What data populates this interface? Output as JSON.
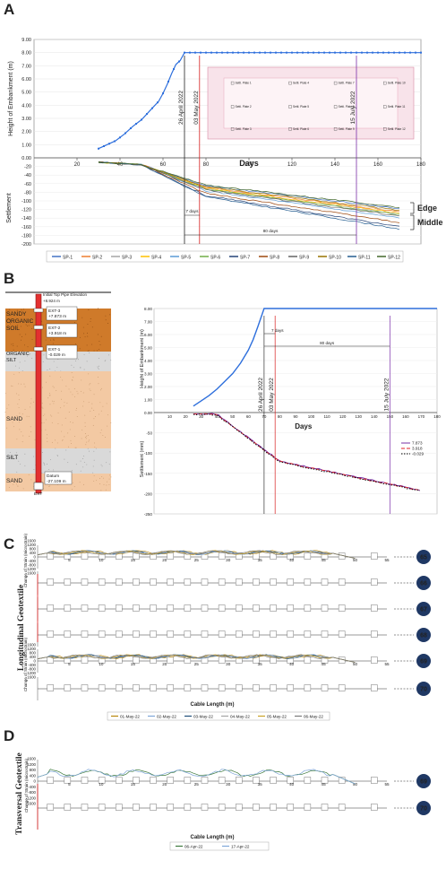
{
  "panels": {
    "A": {
      "letter": "A"
    },
    "B": {
      "letter": "B"
    },
    "C": {
      "letter": "C"
    },
    "D": {
      "letter": "D"
    }
  },
  "chart_data": [
    {
      "id": "A",
      "type": "line",
      "xlabel": "Days",
      "ylabel_top": "Height of Embankment (m)",
      "ylabel_bottom": "Settlement",
      "xlim": [
        0,
        180
      ],
      "ylim_top": [
        0,
        9
      ],
      "ylim_bottom": [
        -200,
        0
      ],
      "x_ticks": [
        "20",
        "40",
        "60",
        "80",
        "100",
        "120",
        "140",
        "160",
        "180"
      ],
      "y_ticks_top": [
        "0.00",
        "1.00",
        "2.00",
        "3.00",
        "4.00",
        "5.00",
        "6.00",
        "7.00",
        "8.00",
        "9.00"
      ],
      "y_ticks_bottom": [
        "-20",
        "-40",
        "-60",
        "-80",
        "-100",
        "-120",
        "-140",
        "-160",
        "-180",
        "-200"
      ],
      "embankment": {
        "x": [
          30,
          34,
          38,
          42,
          46,
          50,
          54,
          58,
          60,
          62,
          64,
          66,
          68,
          70,
          180
        ],
        "y": [
          0.7,
          1.0,
          1.3,
          1.8,
          2.4,
          2.9,
          3.6,
          4.3,
          4.9,
          5.6,
          6.4,
          7.1,
          7.4,
          8.0,
          8.0
        ]
      },
      "vlines": [
        {
          "x": 70,
          "label": "26 April 2022",
          "color": "#222222"
        },
        {
          "x": 77,
          "label": "03 May 2022",
          "color": "#d62020"
        },
        {
          "x": 150,
          "label": "15 July 2022",
          "color": "#7b2fa8"
        }
      ],
      "spans": [
        {
          "x0": 70,
          "x1": 77,
          "label": "7 days"
        },
        {
          "x0": 70,
          "x1": 150,
          "label": "80 days"
        }
      ],
      "annotations": [
        "Edge",
        "Middle"
      ],
      "plate_labels": [
        "Settl. Plate 1",
        "Settl. Plate 2",
        "Settl. Plate 3",
        "Settl. Plate 4",
        "Settl. Plate 5",
        "Settl. Plate 6",
        "Settl. Plate 7",
        "Settl. Plate 8",
        "Settl. Plate 9",
        "Settl. Plate 10",
        "Settl. Plate 11",
        "Settl. Plate 12"
      ],
      "series": [
        {
          "name": "SP-1",
          "color": "#4472c4",
          "final": -118
        },
        {
          "name": "SP-2",
          "color": "#ed7d31",
          "final": -125
        },
        {
          "name": "SP-3",
          "color": "#a5a5a5",
          "final": -130
        },
        {
          "name": "SP-4",
          "color": "#ffc000",
          "final": -128
        },
        {
          "name": "SP-5",
          "color": "#5b9bd5",
          "final": -140
        },
        {
          "name": "SP-6",
          "color": "#70ad47",
          "final": -132
        },
        {
          "name": "SP-7",
          "color": "#264478",
          "final": -160
        },
        {
          "name": "SP-8",
          "color": "#9e480e",
          "final": -150
        },
        {
          "name": "SP-9",
          "color": "#636363",
          "final": -135
        },
        {
          "name": "SP-10",
          "color": "#997300",
          "final": -122
        },
        {
          "name": "SP-11",
          "color": "#255e91",
          "final": -165
        },
        {
          "name": "SP-12",
          "color": "#43682b",
          "final": -115
        }
      ]
    },
    {
      "id": "B",
      "type": "line",
      "xlabel": "Days",
      "ylabel_top": "Height of Embankment (m)",
      "ylabel_bottom": "Settlement (mm)",
      "xlim": [
        0,
        180
      ],
      "x_ticks": [
        "10",
        "20",
        "30",
        "40",
        "50",
        "60",
        "70",
        "80",
        "90",
        "100",
        "110",
        "120",
        "130",
        "140",
        "150",
        "160",
        "170",
        "180"
      ],
      "y_ticks_top": [
        "0.00",
        "1.00",
        "2.00",
        "3.00",
        "4.00",
        "5.00",
        "6.00",
        "7.00",
        "8.00"
      ],
      "y_ticks_bottom": [
        "-50",
        "-100",
        "-150",
        "-200",
        "-250"
      ],
      "series": [
        {
          "name": "7.873",
          "color": "#6a1b9a",
          "style": "solid"
        },
        {
          "name": "3.918",
          "color": "#e0202a",
          "style": "dash"
        },
        {
          "name": "-0.029",
          "color": "#000000",
          "style": "dot"
        }
      ],
      "vlines": [
        "26 April 2022",
        "03 May 2022",
        "15 July 2022"
      ],
      "spans": [
        "7 days",
        "80 days"
      ]
    },
    {
      "id": "C",
      "type": "line",
      "xlabel": "Cable Length (m)",
      "ylabel": "Change of Strain (microstrain)",
      "side_label": "Longitudinal Geotextile",
      "x_ticks": [
        "5",
        "10",
        "15",
        "20",
        "25",
        "30",
        "35",
        "40",
        "45",
        "50",
        "55"
      ],
      "y_ticks": [
        "1600",
        "1200",
        "800",
        "400",
        "0",
        "-400",
        "-800",
        "-1200",
        "-1600"
      ],
      "sensors": [
        "65",
        "66",
        "67",
        "68",
        "69",
        "70"
      ],
      "series": [
        {
          "name": "01-May-22",
          "color": "#b8860b"
        },
        {
          "name": "02-May-22",
          "color": "#7fa7d8"
        },
        {
          "name": "03-May-22",
          "color": "#1f4e79"
        },
        {
          "name": "04-May-22",
          "color": "#a5a5a5"
        },
        {
          "name": "05-May-22",
          "color": "#c9a227"
        },
        {
          "name": "06-May-22",
          "color": "#7a7a7a"
        }
      ]
    },
    {
      "id": "D",
      "type": "line",
      "xlabel": "Cable Length (m)",
      "ylabel": "Change of Strain (microstrain)",
      "side_label": "Transversal Geotextile",
      "x_ticks": [
        "5",
        "10",
        "15",
        "20",
        "25",
        "30",
        "35",
        "40",
        "45",
        "50",
        "55"
      ],
      "y_ticks": [
        "1600",
        "1200",
        "800",
        "400",
        "0",
        "-400",
        "-800",
        "-1200",
        "-1600"
      ],
      "sensors": [
        "69",
        "70"
      ],
      "series": [
        {
          "name": "06-Apr-22",
          "color": "#3d7a3d"
        },
        {
          "name": "17-Apr-22",
          "color": "#7fa7d8"
        }
      ]
    }
  ],
  "soil": {
    "header_text": "Initial Top Pipe Elevation",
    "header_value": "+8.924 m",
    "layers": [
      "SANDY ORGANIC SOIL",
      "ORGANIC SILT",
      "SAND",
      "SILT",
      "SAND"
    ],
    "ext": [
      {
        "name": "EXT-3",
        "value": "+7.873 m"
      },
      {
        "name": "EXT-2",
        "value": "+3.918 m"
      },
      {
        "name": "EXT-1",
        "value": "-0.029 m"
      }
    ],
    "datum_label": "Datum",
    "datum_value": "-27.109 m",
    "bottom_label": "EXT"
  }
}
